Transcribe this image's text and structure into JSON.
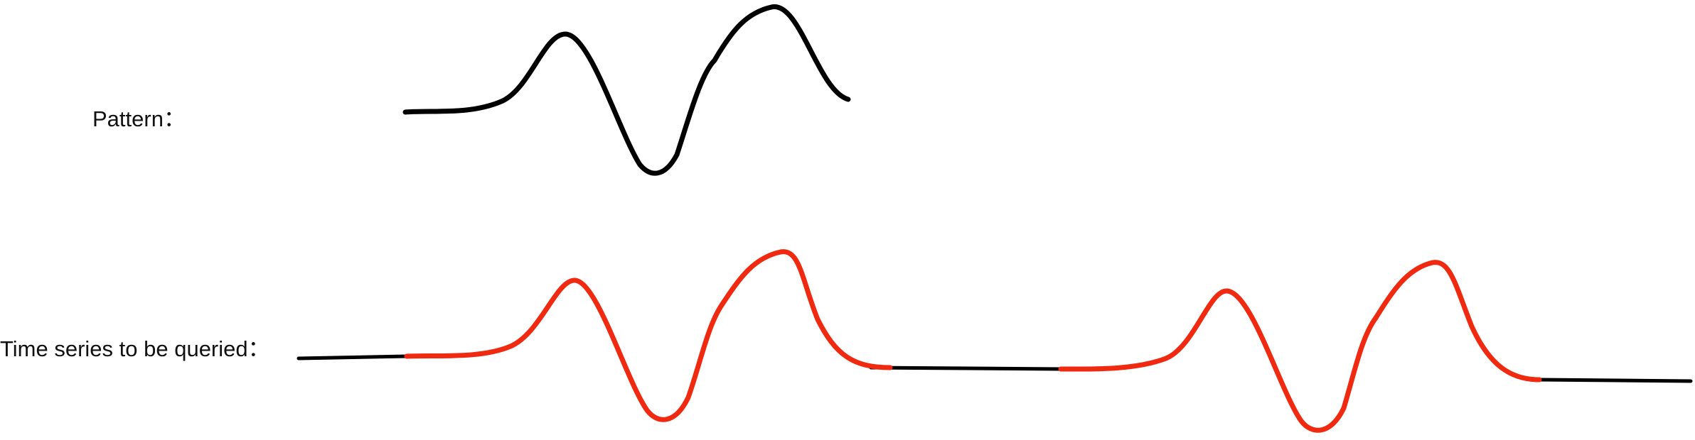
{
  "labels": {
    "pattern": "Pattern：",
    "query": "Time series to be queried："
  },
  "colors": {
    "pattern_line": "#000000",
    "series_line": "#000000",
    "match_highlight": "#f02a10"
  }
}
